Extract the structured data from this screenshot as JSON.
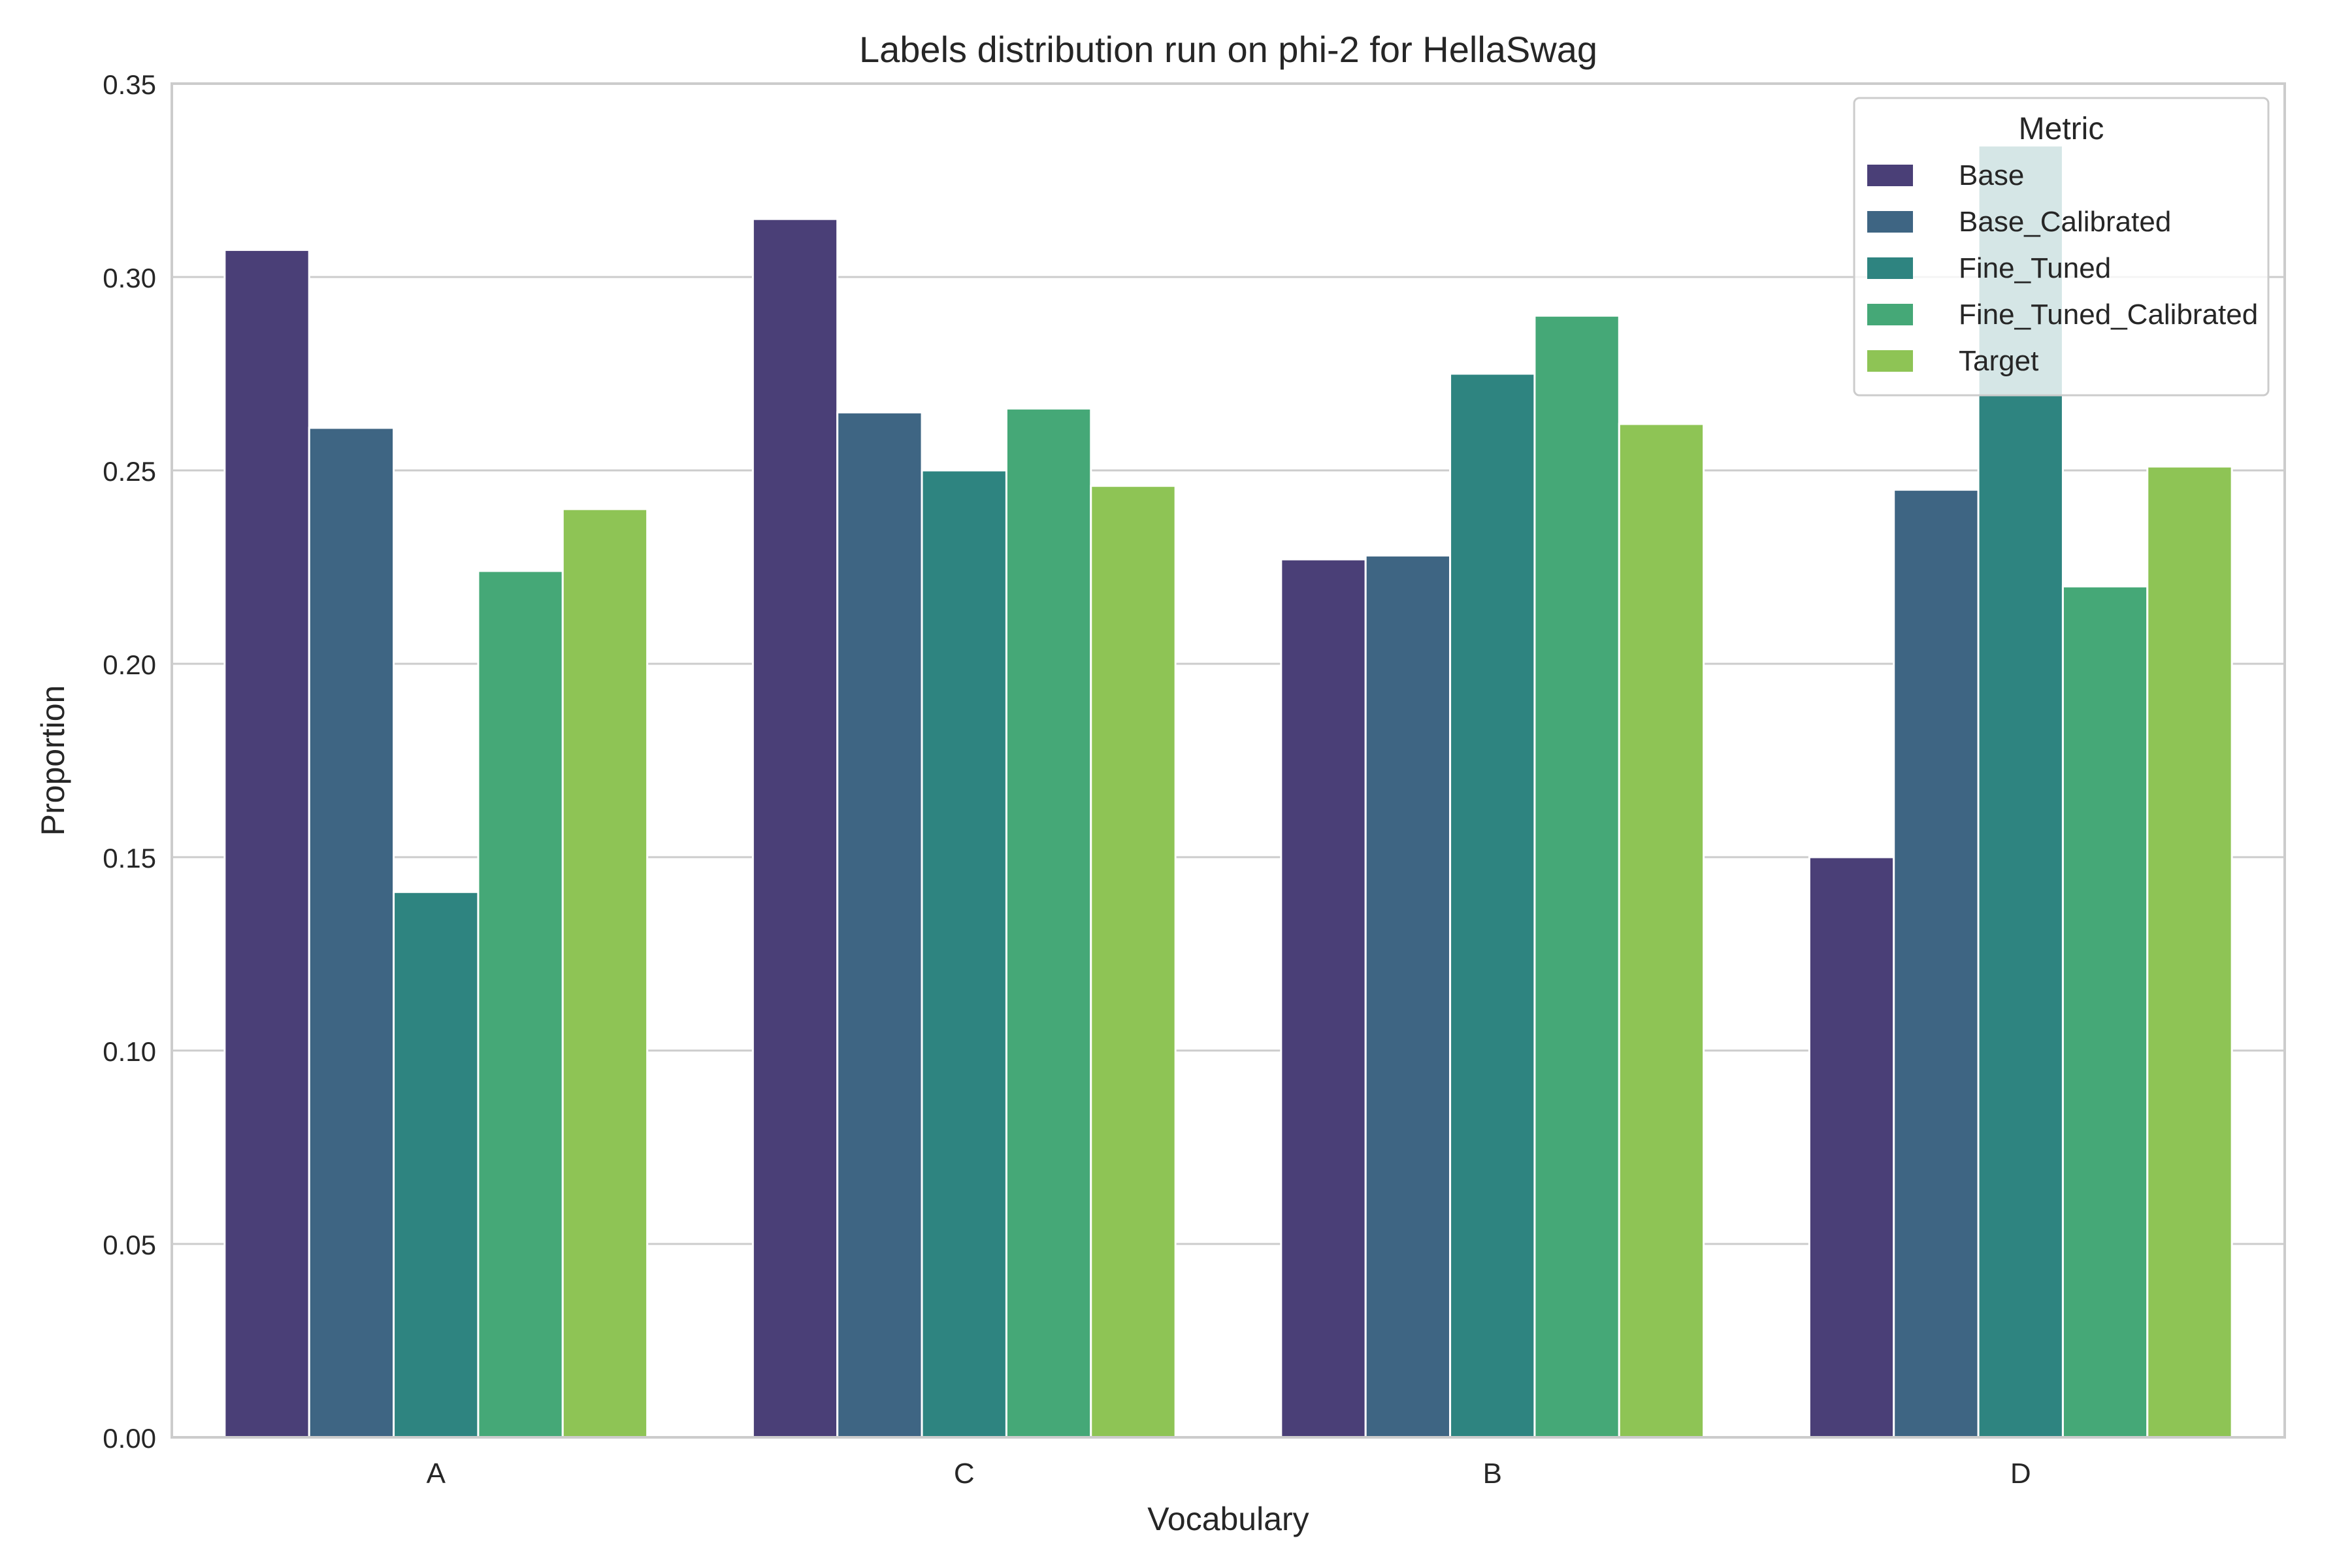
{
  "chart_data": {
    "type": "bar",
    "title": "Labels distribution run on phi-2 for HellaSwag",
    "xlabel": "Vocabulary",
    "ylabel": "Proportion",
    "ylim": [
      0,
      0.35
    ],
    "yticks": [
      "0.00",
      "0.05",
      "0.10",
      "0.15",
      "0.20",
      "0.25",
      "0.30",
      "0.35"
    ],
    "categories": [
      "A",
      "C",
      "B",
      "D"
    ],
    "grid": "horizontal",
    "legend": {
      "title": "Metric",
      "placement": "top-right"
    },
    "series": [
      {
        "name": "Base",
        "color": "#4a3f77",
        "values": [
          0.307,
          0.315,
          0.227,
          0.15
        ]
      },
      {
        "name": "Base_Calibrated",
        "color": "#3e6583",
        "values": [
          0.261,
          0.265,
          0.228,
          0.245
        ]
      },
      {
        "name": "Fine_Tuned",
        "color": "#2e8480",
        "values": [
          0.141,
          0.25,
          0.275,
          0.334
        ]
      },
      {
        "name": "Fine_Tuned_Calibrated",
        "color": "#45a877",
        "values": [
          0.224,
          0.266,
          0.29,
          0.22
        ]
      },
      {
        "name": "Target",
        "color": "#8ec455",
        "values": [
          0.24,
          0.246,
          0.262,
          0.251
        ]
      }
    ]
  }
}
